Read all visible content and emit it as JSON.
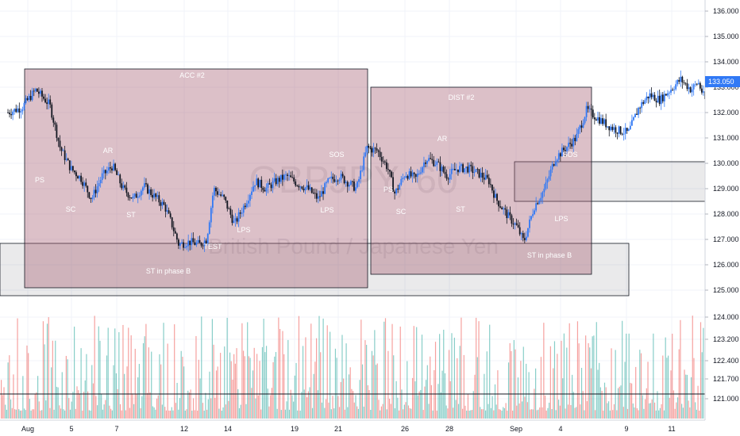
{
  "chart_data": {
    "type": "candlestick",
    "watermark": {
      "symbol": "GBPJPY, 60",
      "name": "British Pound / Japanese Yen"
    },
    "last_price": "133.050",
    "y_ticks": [
      "136.000",
      "135.000",
      "134.000",
      "133.000",
      "132.000",
      "131.000",
      "130.000",
      "129.000",
      "128.000",
      "127.000",
      "126.000",
      "125.000",
      "124.000",
      "123.200",
      "122.400",
      "121.700",
      "121.000"
    ],
    "x_ticks": [
      "Aug",
      "5",
      "7",
      "12",
      "14",
      "19",
      "21",
      "26",
      "28",
      "Sep",
      "4",
      "9",
      "11"
    ],
    "price_path": [
      [
        0,
        132.0
      ],
      [
        2,
        132.2
      ],
      [
        4,
        132.9
      ],
      [
        6,
        132.3
      ],
      [
        7.5,
        130.6
      ],
      [
        9,
        129.8
      ],
      [
        10.5,
        129.4
      ],
      [
        12,
        128.6
      ],
      [
        13.5,
        129.5
      ],
      [
        15,
        129.9
      ],
      [
        16.5,
        129.0
      ],
      [
        18,
        128.6
      ],
      [
        19.5,
        129.1
      ],
      [
        21,
        128.7
      ],
      [
        22.5,
        128.3
      ],
      [
        23.5,
        127.6
      ],
      [
        24.5,
        126.8
      ],
      [
        26,
        126.9
      ],
      [
        27.5,
        126.8
      ],
      [
        28.5,
        127.0
      ],
      [
        29.5,
        129.0
      ],
      [
        31,
        128.6
      ],
      [
        32.5,
        127.6
      ],
      [
        34,
        128.4
      ],
      [
        35.5,
        129.3
      ],
      [
        37,
        129.0
      ],
      [
        38.5,
        129.3
      ],
      [
        40,
        129.5
      ],
      [
        41.5,
        129.2
      ],
      [
        43,
        129.0
      ],
      [
        44.5,
        128.6
      ],
      [
        46,
        129.3
      ],
      [
        47.5,
        129.5
      ],
      [
        49,
        129.2
      ],
      [
        50,
        129.0
      ],
      [
        51.5,
        130.6
      ],
      [
        53,
        130.5
      ],
      [
        54.5,
        129.8
      ],
      [
        55.5,
        128.8
      ],
      [
        57,
        129.6
      ],
      [
        58.5,
        129.4
      ],
      [
        60,
        130.2
      ],
      [
        61.5,
        130.0
      ],
      [
        63,
        129.5
      ],
      [
        64.5,
        129.8
      ],
      [
        66,
        129.8
      ],
      [
        67.5,
        129.6
      ],
      [
        69,
        129.3
      ],
      [
        70,
        128.6
      ],
      [
        71.5,
        128.0
      ],
      [
        73,
        127.5
      ],
      [
        74,
        126.9
      ],
      [
        75.5,
        128.3
      ],
      [
        77,
        129.0
      ],
      [
        78.5,
        130.2
      ],
      [
        80,
        130.6
      ],
      [
        81.5,
        131.0
      ],
      [
        83,
        132.1
      ],
      [
        84.5,
        131.8
      ],
      [
        86,
        131.5
      ],
      [
        87.5,
        131.3
      ],
      [
        89,
        131.2
      ],
      [
        90.5,
        132.2
      ],
      [
        92,
        132.7
      ],
      [
        93.5,
        132.5
      ],
      [
        95,
        132.9
      ],
      [
        96.5,
        133.3
      ],
      [
        98,
        132.9
      ],
      [
        99,
        133.2
      ],
      [
        100,
        132.5
      ]
    ],
    "zones": [
      {
        "label": "ACC #2",
        "sublabel": "ST in phase B"
      },
      {
        "label": "DIST #2",
        "sublabel": "ST in phase B"
      }
    ],
    "annotations": [
      "PS",
      "SC",
      "AR",
      "ST",
      "TEST",
      "LPS",
      "LPS",
      "SOS",
      "PS",
      "SC",
      "AR",
      "ST",
      "LPS",
      "SOS"
    ],
    "legend": "none"
  }
}
